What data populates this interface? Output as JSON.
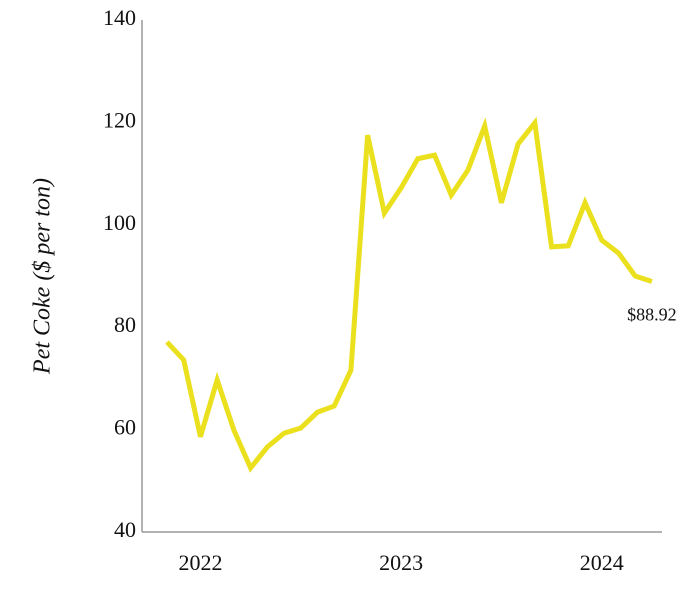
{
  "chart_data": {
    "type": "line",
    "y_label": "Pet Coke ($ per ton)",
    "categories": [
      null,
      null,
      "2022",
      null,
      null,
      null,
      null,
      null,
      null,
      null,
      null,
      null,
      null,
      null,
      "2023",
      null,
      null,
      null,
      null,
      null,
      null,
      null,
      null,
      null,
      null,
      null,
      "2024",
      null,
      null,
      null
    ],
    "series": [
      {
        "name": "Pet Coke",
        "color": "#ebe01e",
        "values": [
          77.1,
          73.6,
          58.6,
          69.7,
          59.9,
          52.5,
          56.6,
          59.3,
          60.3,
          63.4,
          64.6,
          71.6,
          117.5,
          102.3,
          107.2,
          112.9,
          113.6,
          105.8,
          110.7,
          119.3,
          104.3,
          115.8,
          119.9,
          95.7,
          95.9,
          104.3,
          97.0,
          94.5,
          90.0,
          88.92
        ],
        "value_labels": [
          null,
          null,
          null,
          null,
          null,
          null,
          null,
          null,
          null,
          null,
          null,
          null,
          null,
          null,
          null,
          null,
          null,
          null,
          null,
          null,
          null,
          null,
          null,
          null,
          null,
          null,
          null,
          null,
          null,
          "$88.92"
        ]
      }
    ],
    "ylim": [
      40,
      140
    ],
    "yticks": [
      40,
      60,
      80,
      100,
      120,
      140
    ],
    "grid": false
  }
}
